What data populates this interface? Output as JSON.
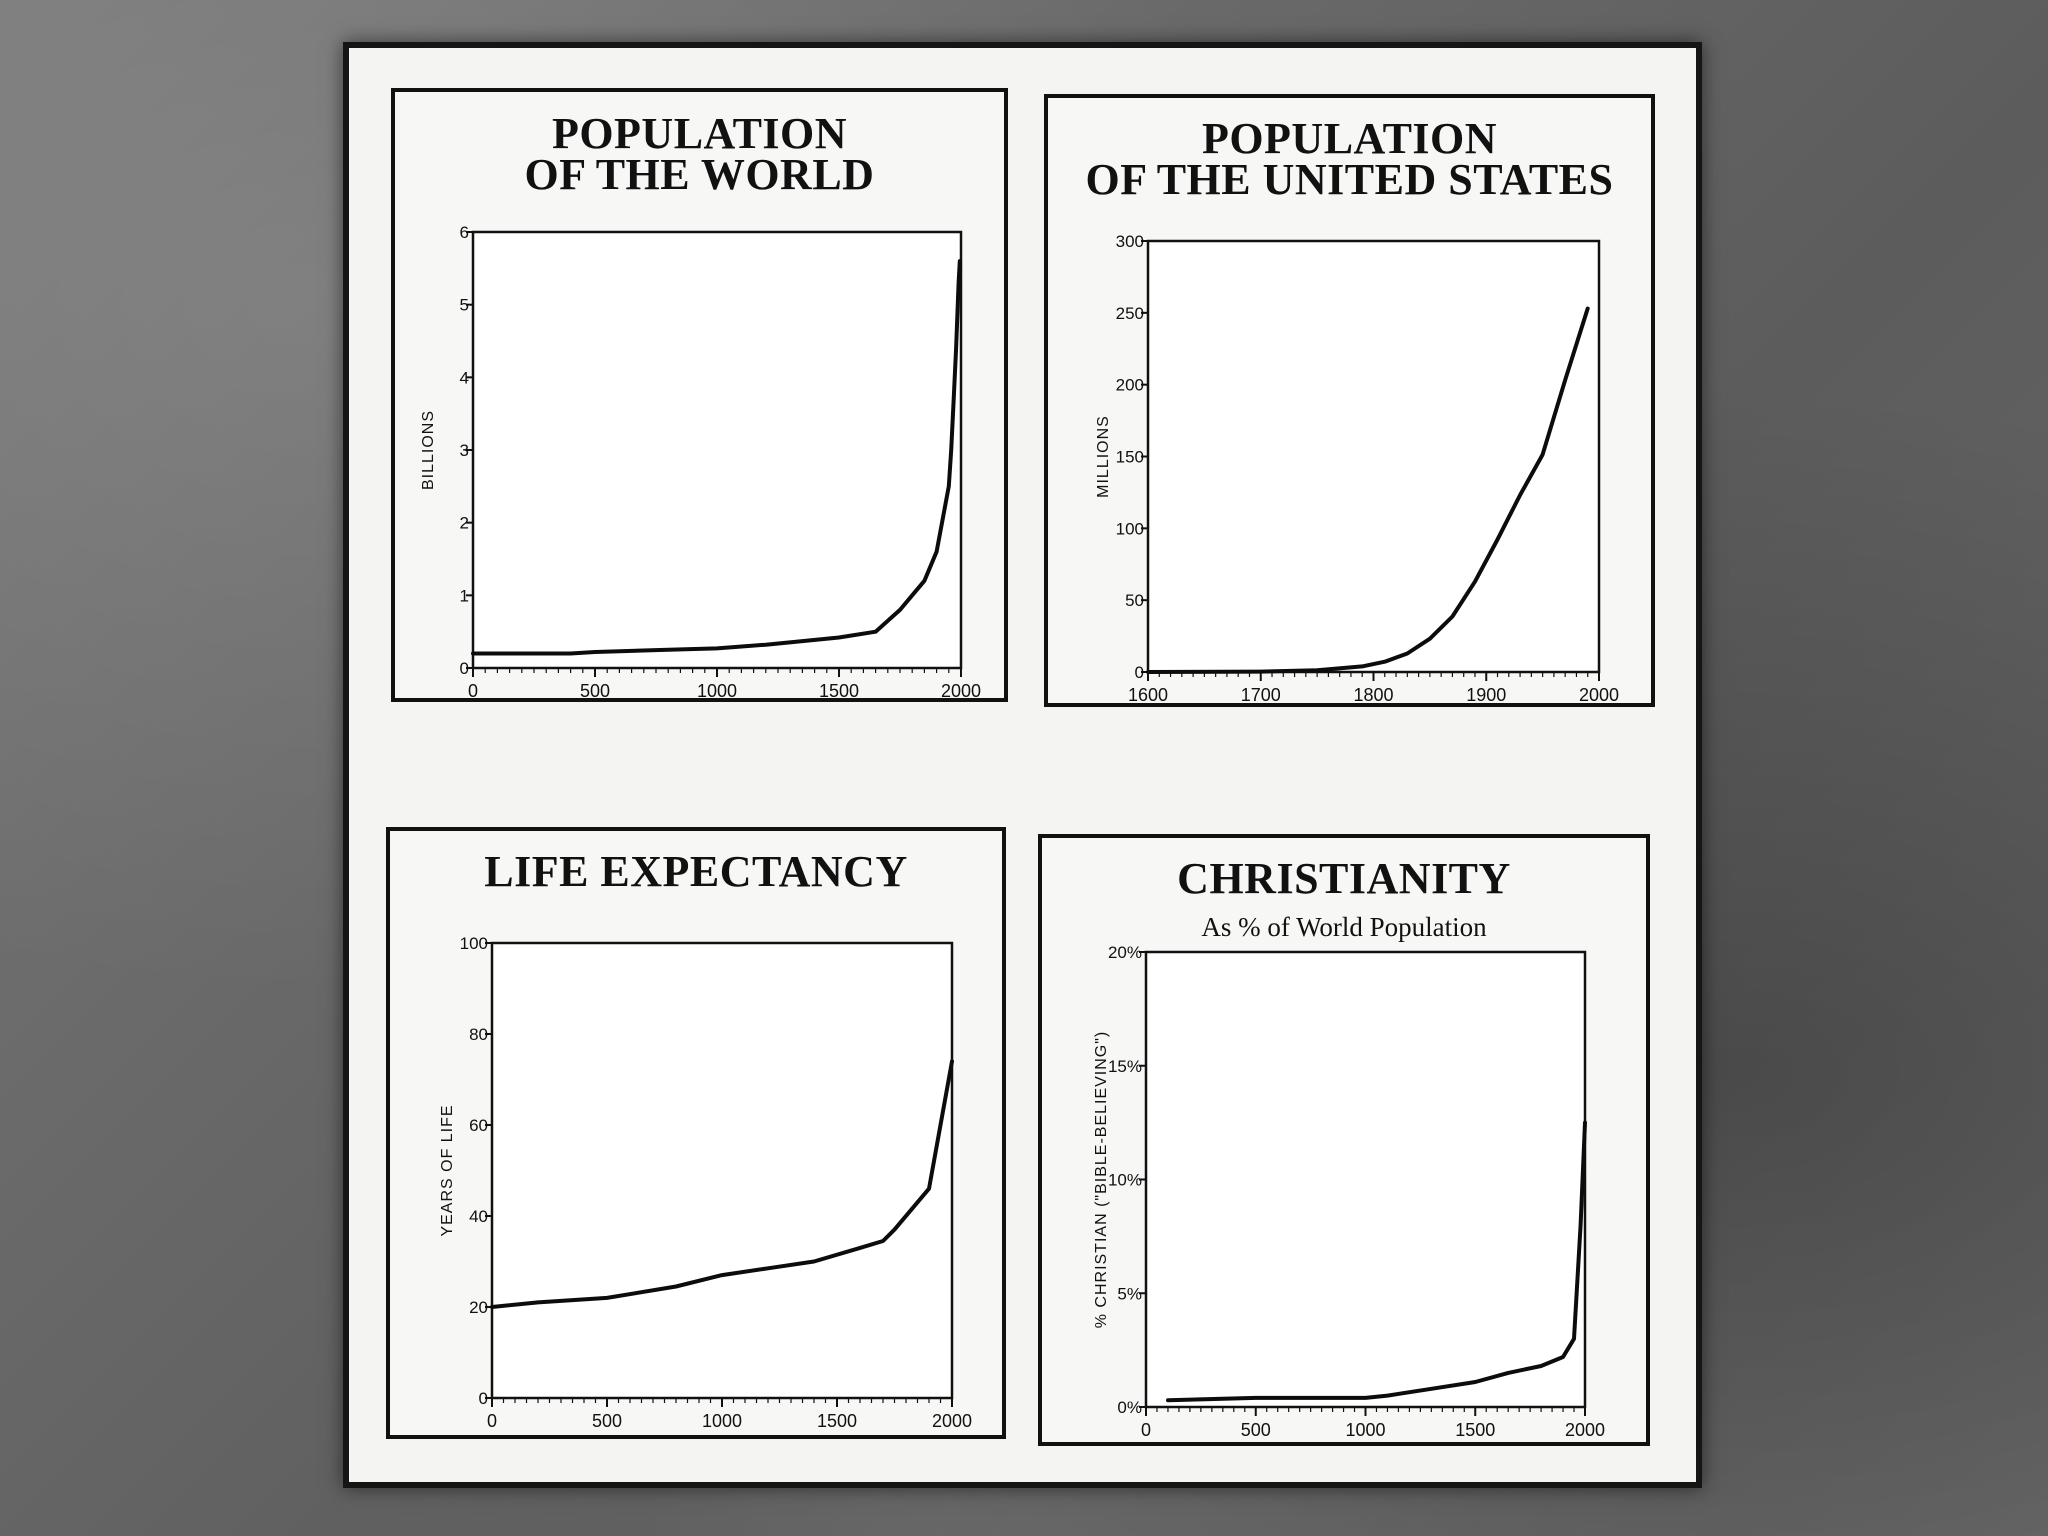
{
  "chart_data": [
    {
      "type": "line",
      "title": [
        "POPULATION",
        "OF THE WORLD"
      ],
      "ylabel": "BILLIONS",
      "xlim": [
        0,
        2000
      ],
      "ylim": [
        0,
        6
      ],
      "yticks": [
        "0",
        "1",
        "2",
        "3",
        "4",
        "5",
        "6"
      ],
      "xticks": [
        "0",
        "500",
        "1000",
        "1500",
        "2000"
      ],
      "series": [
        {
          "x": [
            0,
            400,
            500,
            800,
            1000,
            1200,
            1500,
            1650,
            1750,
            1800,
            1850,
            1900,
            1950,
            1960,
            1970,
            1980,
            1990,
            1995
          ],
          "y": [
            0.2,
            0.2,
            0.22,
            0.25,
            0.27,
            0.32,
            0.42,
            0.5,
            0.8,
            1.0,
            1.2,
            1.6,
            2.5,
            3.0,
            3.7,
            4.4,
            5.3,
            5.6
          ]
        }
      ]
    },
    {
      "type": "line",
      "title": [
        "POPULATION",
        "OF THE UNITED STATES"
      ],
      "ylabel": "MILLIONS",
      "xlim": [
        1600,
        2000
      ],
      "ylim": [
        0,
        300
      ],
      "yticks": [
        "0",
        "50",
        "100",
        "150",
        "200",
        "250",
        "300"
      ],
      "xticks": [
        "1600",
        "1700",
        "1800",
        "1900",
        "2000"
      ],
      "series": [
        {
          "x": [
            1600,
            1700,
            1750,
            1790,
            1810,
            1830,
            1850,
            1870,
            1890,
            1910,
            1930,
            1950,
            1970,
            1990
          ],
          "y": [
            0,
            0.3,
            1.2,
            3.9,
            7.2,
            12.9,
            23.2,
            38.6,
            62.9,
            92.2,
            123.2,
            151.3,
            203.3,
            253
          ]
        }
      ]
    },
    {
      "type": "line",
      "title": [
        "LIFE EXPECTANCY"
      ],
      "ylabel": "YEARS OF LIFE",
      "xlim": [
        0,
        2000
      ],
      "ylim": [
        0,
        100
      ],
      "yticks": [
        "0",
        "20",
        "40",
        "60",
        "80",
        "100"
      ],
      "xticks": [
        "0",
        "500",
        "1000",
        "1500",
        "2000"
      ],
      "series": [
        {
          "x": [
            0,
            200,
            500,
            800,
            1000,
            1200,
            1400,
            1600,
            1700,
            1750,
            1900,
            2000
          ],
          "y": [
            20,
            21,
            22,
            24.5,
            27,
            28.5,
            30,
            33,
            34.5,
            37,
            46,
            74
          ]
        }
      ]
    },
    {
      "type": "line",
      "title": [
        "CHRISTIANITY"
      ],
      "subtitle": "As % of World Population",
      "ylabel": "% CHRISTIAN (\"BIBLE-BELIEVING\")",
      "xlim": [
        0,
        2000
      ],
      "ylim": [
        0,
        20
      ],
      "yticks": [
        "0%",
        "5%",
        "10%",
        "15%",
        "20%"
      ],
      "xticks": [
        "0",
        "500",
        "1000",
        "1500",
        "2000"
      ],
      "series": [
        {
          "x": [
            100,
            500,
            1000,
            1100,
            1300,
            1500,
            1650,
            1800,
            1900,
            1950,
            1980,
            2000
          ],
          "y": [
            0.3,
            0.4,
            0.4,
            0.5,
            0.8,
            1.1,
            1.5,
            1.8,
            2.2,
            3.0,
            8.0,
            12.5
          ]
        }
      ]
    }
  ]
}
